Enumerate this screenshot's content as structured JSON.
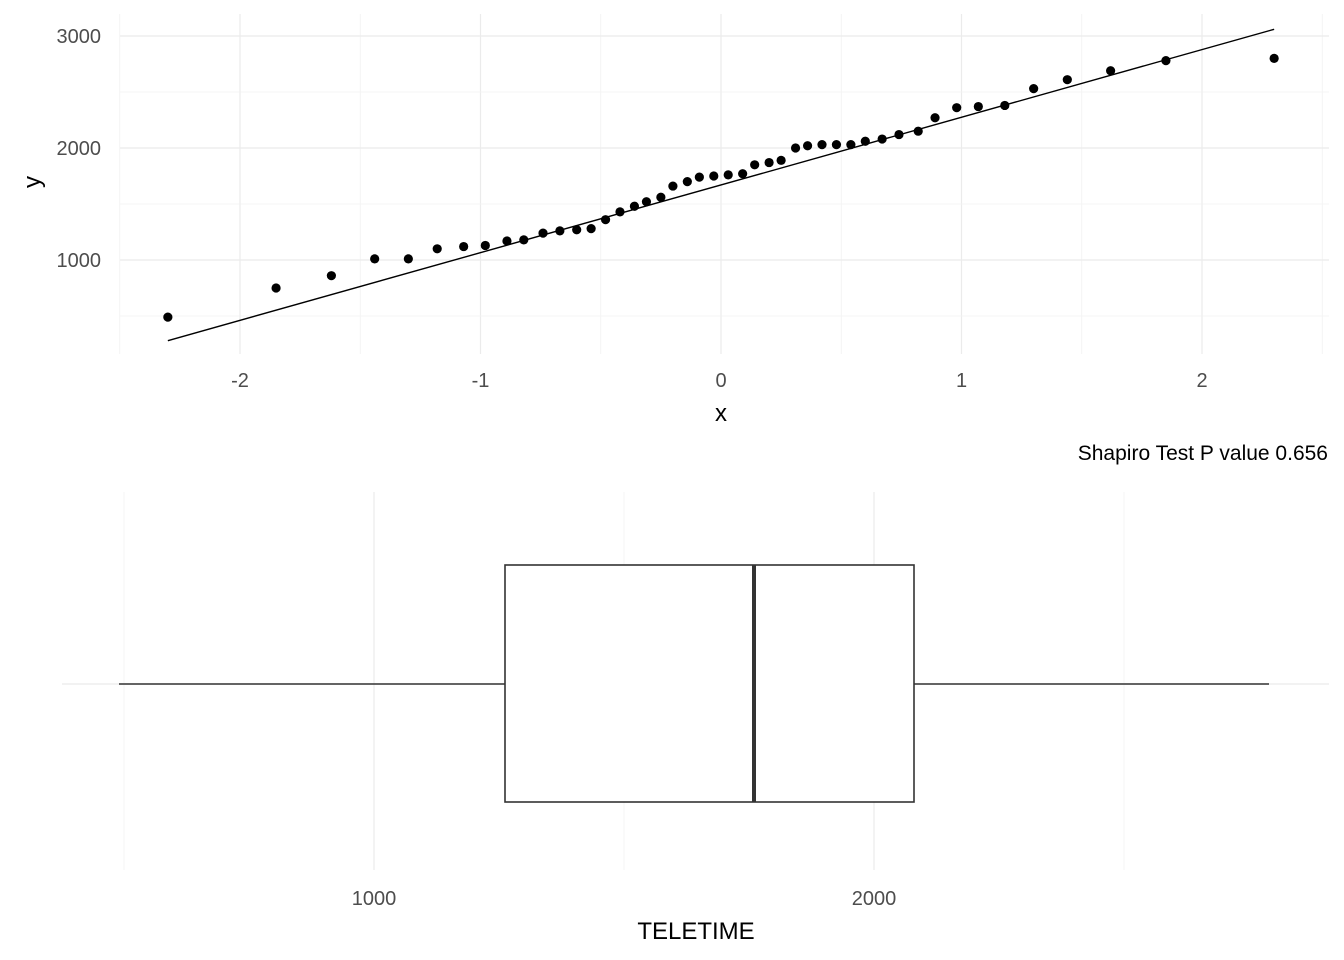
{
  "chart_data": [
    {
      "type": "scatter",
      "subtype": "qq-plot",
      "xlabel": "x",
      "ylabel": "y",
      "xlim": [
        -2.5,
        2.5
      ],
      "ylim": [
        0,
        3200
      ],
      "xticks": [
        -2,
        -1,
        0,
        1,
        2
      ],
      "yticks": [
        1000,
        2000,
        3000
      ],
      "grid": true,
      "reference_line": {
        "x": [
          -2.3,
          2.3
        ],
        "y": [
          280,
          3060
        ]
      },
      "points": {
        "x": [
          -2.3,
          -1.85,
          -1.62,
          -1.44,
          -1.3,
          -1.18,
          -1.07,
          -0.98,
          -0.89,
          -0.82,
          -0.74,
          -0.67,
          -0.6,
          -0.54,
          -0.48,
          -0.42,
          -0.36,
          -0.31,
          -0.25,
          -0.2,
          -0.14,
          -0.09,
          -0.03,
          0.03,
          0.09,
          0.14,
          0.2,
          0.25,
          0.31,
          0.36,
          0.42,
          0.48,
          0.54,
          0.6,
          0.67,
          0.74,
          0.82,
          0.89,
          0.98,
          1.07,
          1.18,
          1.3,
          1.44,
          1.62,
          1.85,
          2.3
        ],
        "y": [
          490,
          750,
          860,
          1010,
          1010,
          1100,
          1120,
          1130,
          1170,
          1180,
          1240,
          1260,
          1270,
          1280,
          1360,
          1430,
          1480,
          1520,
          1560,
          1660,
          1700,
          1740,
          1750,
          1760,
          1770,
          1850,
          1870,
          1890,
          2000,
          2020,
          2030,
          2030,
          2030,
          2060,
          2080,
          2120,
          2150,
          2270,
          2360,
          2370,
          2380,
          2530,
          2610,
          2690,
          2780,
          2800
        ]
      }
    },
    {
      "type": "boxplot",
      "xlabel": "TELETIME",
      "caption": "Shapiro Test P value 0.656",
      "xlim": [
        400,
        2920
      ],
      "xticks": [
        1000,
        2000
      ],
      "grid": true,
      "box": {
        "min": 490,
        "q1": 1262,
        "median": 1760,
        "q3": 2080,
        "max": 2790
      }
    }
  ]
}
